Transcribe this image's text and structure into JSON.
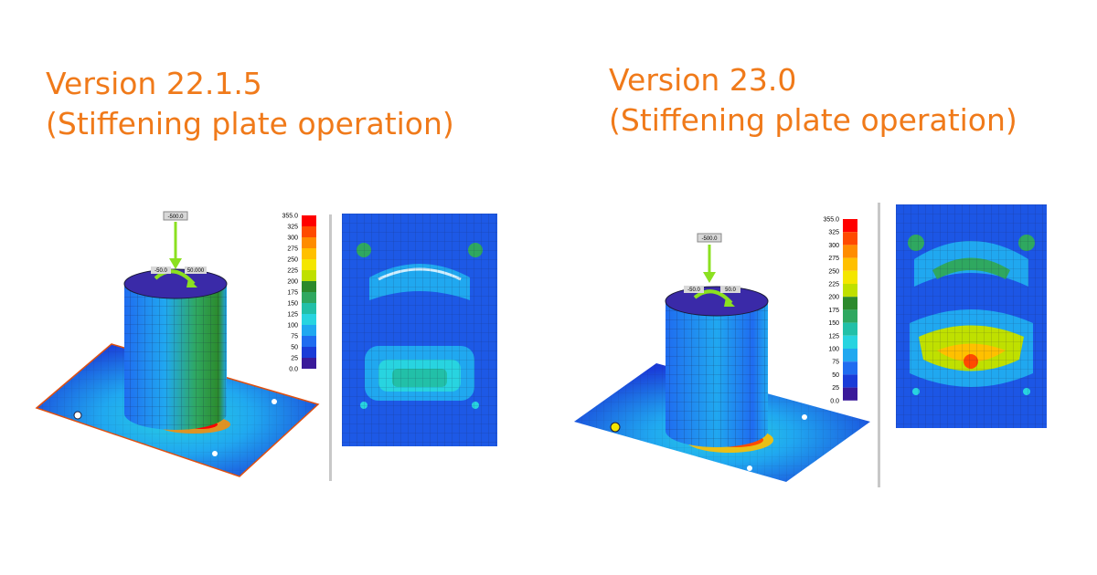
{
  "left": {
    "title": "Version 22.1.5",
    "subtitle": "(Stiffening plate operation)",
    "force_label": "-500.0",
    "moment_label_a": "-50.0",
    "moment_label_b": "50.000",
    "legend": [
      "355.0",
      "325",
      "300",
      "275",
      "250",
      "225",
      "200",
      "175",
      "150",
      "125",
      "100",
      "75",
      "50",
      "25",
      "0.0"
    ]
  },
  "right": {
    "title": "Version 23.0",
    "subtitle": "(Stiffening plate operation)",
    "force_label": "-500.0",
    "moment_label_a": "-50.0",
    "moment_label_b": "50.0",
    "legend": [
      "355.0",
      "325",
      "300",
      "275",
      "250",
      "225",
      "200",
      "175",
      "150",
      "125",
      "100",
      "75",
      "50",
      "25",
      "0.0"
    ]
  },
  "colors": {
    "heading": "#f07a1a",
    "scale": [
      "#ff0000",
      "#ff4a00",
      "#ff8c00",
      "#ffc000",
      "#f4e600",
      "#bfe000",
      "#2c8a2c",
      "#2fa860",
      "#22c0a8",
      "#28d4e0",
      "#20a8f0",
      "#1f6cf0",
      "#1a3cd8",
      "#3a1a9a"
    ],
    "arrow": "#8be020"
  }
}
